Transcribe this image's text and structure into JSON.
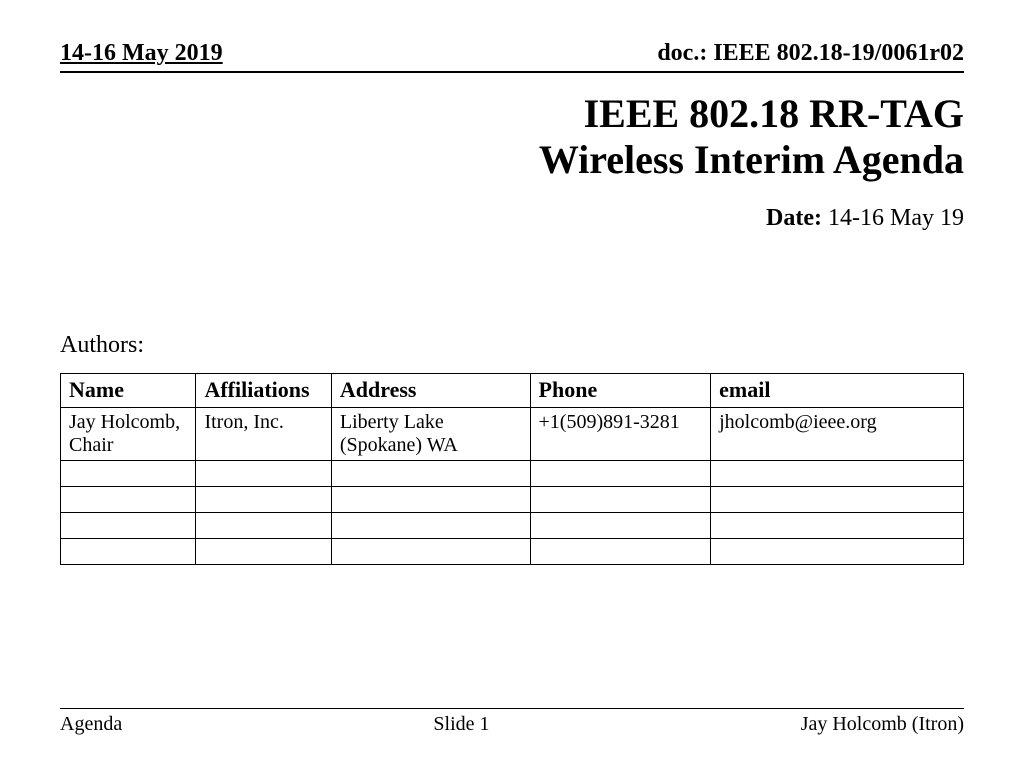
{
  "header": {
    "date_range": "14-16 May  2019",
    "doc_ref": "doc.: IEEE 802.18-19/0061r02"
  },
  "title": {
    "line1": "IEEE 802.18 RR-TAG",
    "line2": "Wireless Interim Agenda"
  },
  "date_line": {
    "label": "Date:",
    "value": " 14-16 May 19"
  },
  "authors_label": "Authors:",
  "table": {
    "columns": [
      "Name",
      "Affiliations",
      "Address",
      "Phone",
      "email"
    ],
    "column_widths_pct": [
      15,
      15,
      22,
      20,
      28
    ],
    "header_fontsize": 22,
    "cell_fontsize": 20,
    "border_color": "#000000",
    "rows": [
      [
        "Jay Holcomb, Chair",
        "Itron, Inc.",
        "Liberty Lake (Spokane) WA",
        "+1(509)891-3281",
        "jholcomb@ieee.org"
      ],
      [
        "",
        "",
        "",
        "",
        ""
      ],
      [
        "",
        "",
        "",
        "",
        ""
      ],
      [
        "",
        "",
        "",
        "",
        ""
      ],
      [
        "",
        "",
        "",
        "",
        ""
      ]
    ]
  },
  "footer": {
    "left": "Agenda",
    "center": "Slide 1",
    "right": "Jay Holcomb (Itron)"
  },
  "style": {
    "background_color": "#ffffff",
    "text_color": "#000000",
    "font_family": "Times New Roman",
    "rule_color": "#000000",
    "title_fontsize": 40,
    "header_fontsize": 24,
    "body_fontsize": 24,
    "footer_fontsize": 20
  }
}
